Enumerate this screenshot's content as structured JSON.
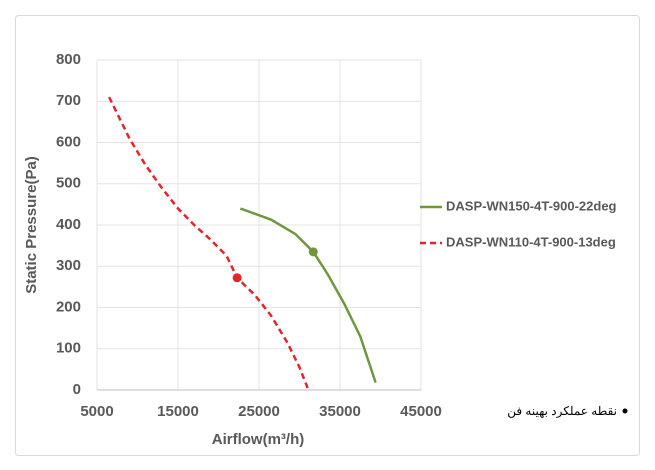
{
  "chart_data": {
    "type": "line",
    "x_label": "Airflow(m³/h)",
    "y_label": "Static Pressure(Pa)",
    "xlim": [
      5000,
      45000
    ],
    "xticks": [
      5000,
      15000,
      25000,
      35000,
      45000
    ],
    "ylim": [
      0,
      800
    ],
    "yticks": [
      0,
      100,
      200,
      300,
      400,
      500,
      600,
      700,
      800
    ],
    "grid": true,
    "legend": "right",
    "series": [
      {
        "name": "DASP-WN150-4T-900-22deg",
        "color": "#70973f",
        "dash": false,
        "x": [
          22700,
          26500,
          29500,
          31700,
          33500,
          35500,
          37500,
          39400
        ],
        "values": [
          440,
          413,
          378,
          335,
          280,
          210,
          130,
          18
        ],
        "point_x": 31700,
        "point_y": 335
      },
      {
        "name": "DASP-WN110-4T-900-13deg",
        "color": "#e3262a",
        "dash": true,
        "x": [
          6500,
          9000,
          11000,
          13000,
          15000,
          17000,
          19000,
          21000,
          22300,
          24500,
          26500,
          28500,
          30000,
          31000
        ],
        "values": [
          710,
          610,
          545,
          490,
          440,
          400,
          365,
          325,
          272,
          230,
          180,
          115,
          55,
          5
        ],
        "point_x": 22300,
        "point_y": 272
      }
    ],
    "annotation": "نقطه عملکرد بهینه فن"
  }
}
